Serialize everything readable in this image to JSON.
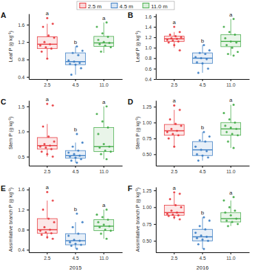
{
  "chart_data": [
    {
      "type": "box",
      "title": "A",
      "ylabel": "Leaf P (g kg⁻¹)",
      "categories": [
        "2.5",
        "4.5",
        "11.0"
      ],
      "colors": [
        "#e8383d",
        "#3b7dc4",
        "#46ad4a"
      ],
      "series": [
        {
          "name": "2.5 m"
        },
        {
          "name": "4.5 m"
        },
        {
          "name": "11.0 m"
        }
      ],
      "legend": "top",
      "ylim": [
        0.35,
        1.85
      ],
      "yticks": [
        0.4,
        0.8,
        1.2,
        1.6
      ],
      "annotations": [
        "a",
        "b",
        "a"
      ],
      "boxes": [
        {
          "whisker_low": 0.82,
          "q1": 1.05,
          "median": 1.15,
          "q3": 1.32,
          "whisker_high": 1.62,
          "points": [
            1.75,
            1.62,
            1.55,
            1.35,
            1.3,
            1.2,
            1.15,
            1.12,
            1.08,
            1.05,
            0.98,
            0.82
          ]
        },
        {
          "whisker_low": 0.45,
          "q1": 0.68,
          "median": 0.75,
          "q3": 0.95,
          "whisker_high": 1.1,
          "points": [
            1.1,
            1.0,
            0.95,
            0.9,
            0.78,
            0.75,
            0.72,
            0.7,
            0.68,
            0.6,
            0.45
          ]
        },
        {
          "whisker_low": 0.95,
          "q1": 1.1,
          "median": 1.18,
          "q3": 1.33,
          "whisker_high": 1.65,
          "points": [
            1.65,
            1.55,
            1.4,
            1.32,
            1.25,
            1.2,
            1.18,
            1.15,
            1.12,
            1.08,
            0.98
          ]
        }
      ]
    },
    {
      "type": "box",
      "title": "B",
      "ylabel": "Leaf P (g kg⁻¹)",
      "categories": [
        "2.5",
        "4.5",
        "11.0"
      ],
      "colors": [
        "#e8383d",
        "#3b7dc4",
        "#46ad4a"
      ],
      "ylim": [
        0.4,
        1.65
      ],
      "yticks": [
        0.4,
        0.6,
        0.8,
        {
          "value": 1,
          "label": "1.0"
        },
        1.2,
        1.4,
        1.6
      ],
      "annotations": [
        "a",
        "b",
        "a"
      ],
      "boxes": [
        {
          "whisker_low": 1.0,
          "q1": 1.12,
          "median": 1.17,
          "q3": 1.22,
          "whisker_high": 1.3,
          "points": [
            1.4,
            1.3,
            1.25,
            1.22,
            1.2,
            1.18,
            1.17,
            1.15,
            1.14,
            1.12,
            1.1,
            1.05,
            0.95
          ]
        },
        {
          "whisker_low": 0.52,
          "q1": 0.7,
          "median": 0.8,
          "q3": 0.9,
          "whisker_high": 1.05,
          "points": [
            1.05,
            0.95,
            0.9,
            0.88,
            0.82,
            0.8,
            0.78,
            0.72,
            0.7,
            0.6,
            0.52
          ]
        },
        {
          "whisker_low": 0.85,
          "q1": 1.02,
          "median": 1.12,
          "q3": 1.25,
          "whisker_high": 1.55,
          "points": [
            1.55,
            1.4,
            1.3,
            1.25,
            1.18,
            1.12,
            1.1,
            1.05,
            1.0,
            0.92,
            0.88,
            0.85
          ]
        }
      ]
    },
    {
      "type": "box",
      "title": "C",
      "ylabel": "Stem P (g kg⁻¹)",
      "categories": [
        "2.5",
        "4.5",
        "11.0"
      ],
      "colors": [
        "#e8383d",
        "#3b7dc4",
        "#46ad4a"
      ],
      "ylim": [
        0.32,
        1.62
      ],
      "yticks": [
        0.5,
        {
          "value": 1,
          "label": "1.0"
        },
        1.5
      ],
      "annotations": [
        "a",
        "b",
        "a"
      ],
      "boxes": [
        {
          "whisker_low": 0.5,
          "q1": 0.65,
          "median": 0.72,
          "q3": 0.88,
          "whisker_high": 1.15,
          "points": [
            1.55,
            1.52,
            1.1,
            0.9,
            0.8,
            0.75,
            0.72,
            0.7,
            0.68,
            0.65,
            0.6,
            0.55,
            0.5
          ]
        },
        {
          "whisker_low": 0.38,
          "q1": 0.47,
          "median": 0.52,
          "q3": 0.62,
          "whisker_high": 0.78,
          "points": [
            0.95,
            0.78,
            0.7,
            0.62,
            0.58,
            0.55,
            0.52,
            0.5,
            0.48,
            0.45,
            0.42,
            0.38
          ]
        },
        {
          "whisker_low": 0.45,
          "q1": 0.6,
          "median": 0.7,
          "q3": 1.08,
          "whisker_high": 1.5,
          "points": [
            1.5,
            1.35,
            1.2,
            1.08,
            0.95,
            0.75,
            0.7,
            0.68,
            0.62,
            0.6,
            0.55,
            0.45
          ]
        }
      ]
    },
    {
      "type": "box",
      "title": "D",
      "ylabel": "Stem P (g kg⁻¹)",
      "categories": [
        "2.5",
        "4.5",
        "11.0"
      ],
      "colors": [
        "#e8383d",
        "#3b7dc4",
        "#46ad4a"
      ],
      "ylim": [
        0.32,
        1.35
      ],
      "yticks": [
        {
          "value": 0.5,
          "label": "0.50"
        },
        0.75,
        {
          "value": 1,
          "label": "1.00"
        },
        1.25
      ],
      "annotations": [
        "a",
        "b",
        "a"
      ],
      "boxes": [
        {
          "whisker_low": 0.62,
          "q1": 0.8,
          "median": 0.87,
          "q3": 0.97,
          "whisker_high": 1.2,
          "points": [
            1.27,
            1.2,
            1.05,
            0.98,
            0.95,
            0.9,
            0.87,
            0.85,
            0.82,
            0.8,
            0.75,
            0.62
          ]
        },
        {
          "whisker_low": 0.4,
          "q1": 0.48,
          "median": 0.57,
          "q3": 0.7,
          "whisker_high": 0.85,
          "points": [
            0.85,
            0.78,
            0.72,
            0.7,
            0.62,
            0.57,
            0.55,
            0.5,
            0.48,
            0.45,
            0.4
          ]
        },
        {
          "whisker_low": 0.6,
          "q1": 0.8,
          "median": 0.9,
          "q3": 1.0,
          "whisker_high": 1.28,
          "points": [
            1.28,
            1.15,
            1.05,
            1.0,
            0.95,
            0.92,
            0.9,
            0.85,
            0.82,
            0.8,
            0.7,
            0.6
          ]
        }
      ]
    },
    {
      "type": "box",
      "title": "E",
      "ylabel": "Assimilative branch P (g kg⁻¹)",
      "xlabel": "2015",
      "categories": [
        "2.5",
        "4.5",
        "11.0"
      ],
      "colors": [
        "#e8383d",
        "#3b7dc4",
        "#46ad4a"
      ],
      "ylim": [
        0.35,
        1.65
      ],
      "yticks": [
        0.4,
        0.8,
        1.2,
        1.6
      ],
      "annotations": [
        "a",
        "b",
        "a"
      ],
      "boxes": [
        {
          "whisker_low": 0.62,
          "q1": 0.73,
          "median": 0.8,
          "q3": 1.02,
          "whisker_high": 1.38,
          "points": [
            1.55,
            1.38,
            1.2,
            1.02,
            0.95,
            0.85,
            0.8,
            0.78,
            0.75,
            0.73,
            0.7,
            0.65,
            0.62
          ]
        },
        {
          "whisker_low": 0.42,
          "q1": 0.5,
          "median": 0.58,
          "q3": 0.72,
          "whisker_high": 0.95,
          "points": [
            1.12,
            0.95,
            0.85,
            0.72,
            0.68,
            0.6,
            0.58,
            0.55,
            0.52,
            0.5,
            0.48,
            0.42
          ]
        },
        {
          "whisker_low": 0.62,
          "q1": 0.78,
          "median": 0.87,
          "q3": 1.0,
          "whisker_high": 1.2,
          "points": [
            1.2,
            1.1,
            1.05,
            1.0,
            0.95,
            0.9,
            0.87,
            0.85,
            0.8,
            0.78,
            0.72,
            0.62
          ]
        }
      ]
    },
    {
      "type": "box",
      "title": "F",
      "ylabel": "Assimilative branch P (g kg⁻¹)",
      "xlabel": "2016",
      "categories": [
        "2.5",
        "4.5",
        "11.0"
      ],
      "colors": [
        "#e8383d",
        "#3b7dc4",
        "#46ad4a"
      ],
      "ylim": [
        0.33,
        1.3
      ],
      "yticks": [
        {
          "value": 0.5,
          "label": "0.50"
        },
        0.75,
        {
          "value": 1,
          "label": "1.00"
        },
        1.25
      ],
      "annotations": [
        "a",
        "b",
        "a"
      ],
      "boxes": [
        {
          "whisker_low": 0.82,
          "q1": 0.88,
          "median": 0.92,
          "q3": 1.03,
          "whisker_high": 1.2,
          "points": [
            1.22,
            1.2,
            1.12,
            1.03,
            1.0,
            0.95,
            0.92,
            0.9,
            0.89,
            0.88,
            0.87,
            0.85,
            0.82
          ]
        },
        {
          "whisker_low": 0.38,
          "q1": 0.5,
          "median": 0.56,
          "q3": 0.67,
          "whisker_high": 0.85,
          "points": [
            0.85,
            0.8,
            0.72,
            0.67,
            0.62,
            0.58,
            0.56,
            0.54,
            0.52,
            0.5,
            0.45,
            0.38
          ]
        },
        {
          "whisker_low": 0.72,
          "q1": 0.78,
          "median": 0.83,
          "q3": 0.92,
          "whisker_high": 1.1,
          "points": [
            1.15,
            1.1,
            1.0,
            0.95,
            0.92,
            0.88,
            0.83,
            0.8,
            0.78,
            0.75,
            0.72
          ]
        }
      ]
    }
  ]
}
